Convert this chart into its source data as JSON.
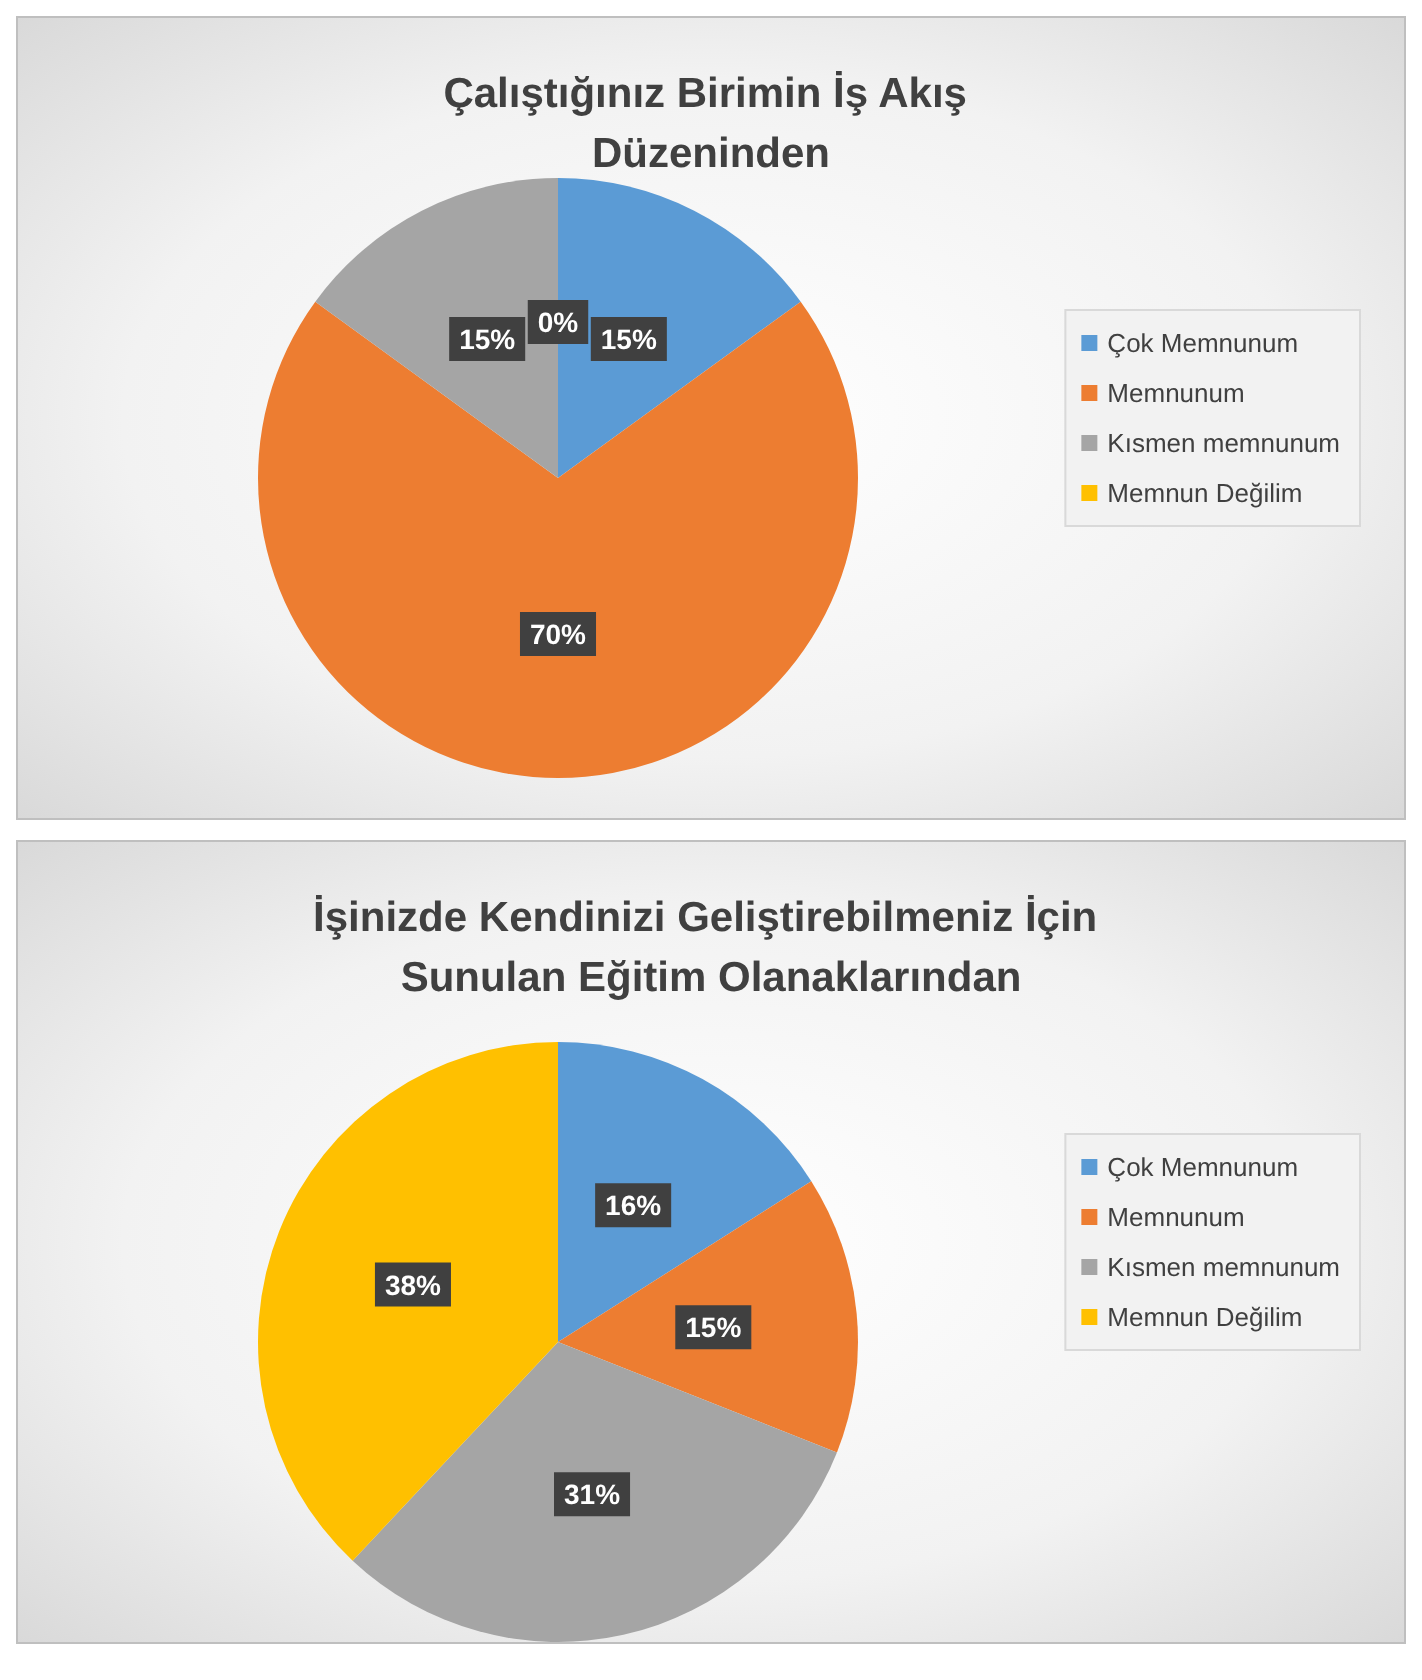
{
  "chart_data": [
    {
      "type": "pie",
      "title": "Çalıştığınız Birimin İş Akış Düzeninden",
      "categories": [
        "Çok Memnunum",
        "Memnunum",
        "Kısmen memnunum",
        "Memnun Değilim"
      ],
      "values": [
        15,
        70,
        15,
        0
      ],
      "value_labels": [
        "15%",
        "70%",
        "15%",
        "0%"
      ],
      "colors": [
        "#5b9bd5",
        "#ed7d31",
        "#a5a5a5",
        "#ffc000"
      ],
      "legend": "right"
    },
    {
      "type": "pie",
      "title": "İşinizde Kendinizi Geliştirebilmeniz İçin Sunulan Eğitim Olanaklarından",
      "categories": [
        "Çok Memnunum",
        "Memnunum",
        "Kısmen memnunum",
        "Memnun Değilim"
      ],
      "values": [
        16,
        15,
        31,
        38
      ],
      "value_labels": [
        "16%",
        "15%",
        "31%",
        "38%"
      ],
      "colors": [
        "#5b9bd5",
        "#ed7d31",
        "#a5a5a5",
        "#ffc000"
      ],
      "legend": "right"
    }
  ]
}
